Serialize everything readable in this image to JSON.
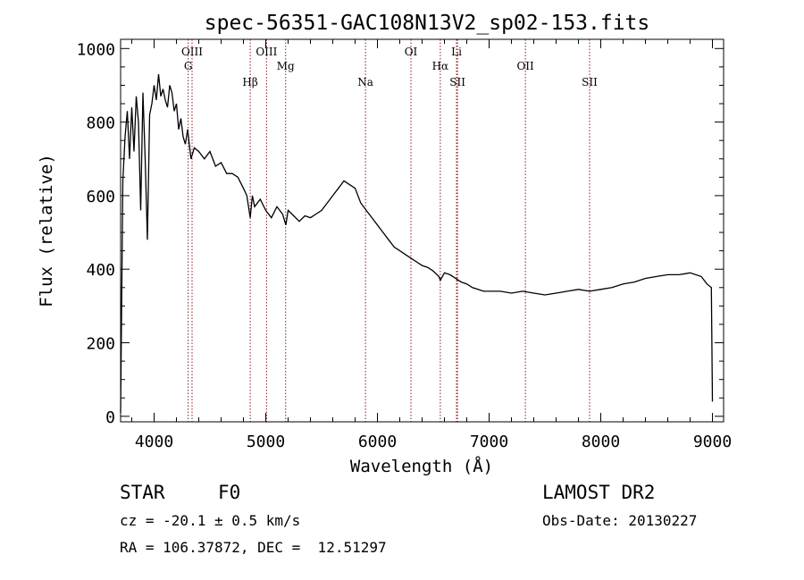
{
  "chart_data": {
    "type": "line",
    "title": "spec-56351-GAC108N13V2_sp02-153.fits",
    "xlabel": "Wavelength (Å)",
    "ylabel": "Flux (relative)",
    "xlim": [
      3700,
      9100
    ],
    "ylim": [
      -15,
      1025
    ],
    "x_ticks": [
      4000,
      5000,
      6000,
      7000,
      8000,
      9000
    ],
    "y_ticks": [
      0,
      200,
      400,
      600,
      800,
      1000
    ],
    "grid": false,
    "legend": "none",
    "series": [
      {
        "x": [
          3700,
          3720,
          3740,
          3760,
          3780,
          3800,
          3820,
          3840,
          3860,
          3880,
          3900,
          3920,
          3940,
          3960,
          3980,
          4000,
          4020,
          4040,
          4060,
          4080,
          4100,
          4120,
          4140,
          4160,
          4180,
          4200,
          4220,
          4240,
          4260,
          4280,
          4300,
          4330,
          4360,
          4400,
          4450,
          4500,
          4550,
          4600,
          4650,
          4700,
          4750,
          4800,
          4830,
          4861,
          4880,
          4900,
          4950,
          5000,
          5050,
          5100,
          5150,
          5180,
          5200,
          5250,
          5300,
          5350,
          5400,
          5450,
          5500,
          5550,
          5600,
          5650,
          5700,
          5750,
          5800,
          5850,
          5900,
          5950,
          6000,
          6050,
          6100,
          6150,
          6200,
          6250,
          6300,
          6350,
          6400,
          6450,
          6500,
          6550,
          6563,
          6600,
          6650,
          6700,
          6750,
          6800,
          6850,
          6900,
          6950,
          7000,
          7100,
          7200,
          7300,
          7400,
          7500,
          7600,
          7700,
          7800,
          7900,
          8000,
          8100,
          8200,
          8300,
          8400,
          8500,
          8600,
          8700,
          8800,
          8900,
          8950,
          8990,
          9000
        ],
        "y": [
          10,
          640,
          760,
          830,
          700,
          840,
          720,
          870,
          800,
          560,
          880,
          700,
          480,
          820,
          850,
          900,
          860,
          930,
          870,
          890,
          860,
          840,
          900,
          880,
          830,
          850,
          780,
          810,
          760,
          740,
          780,
          700,
          730,
          720,
          700,
          720,
          680,
          690,
          660,
          660,
          650,
          620,
          600,
          540,
          600,
          570,
          590,
          560,
          540,
          570,
          550,
          520,
          560,
          545,
          530,
          545,
          540,
          550,
          560,
          580,
          600,
          620,
          640,
          630,
          620,
          580,
          560,
          540,
          520,
          500,
          480,
          460,
          450,
          440,
          430,
          420,
          410,
          405,
          395,
          380,
          370,
          390,
          385,
          375,
          365,
          360,
          350,
          345,
          340,
          340,
          340,
          335,
          340,
          335,
          330,
          335,
          340,
          345,
          340,
          345,
          350,
          360,
          365,
          375,
          380,
          385,
          385,
          390,
          380,
          360,
          350,
          40
        ]
      }
    ],
    "lines": [
      {
        "label": "OIII",
        "x": 4340
      },
      {
        "label": "G",
        "x": 4305
      },
      {
        "label": "Hβ",
        "x": 4861
      },
      {
        "label": "OIII",
        "x": 5007
      },
      {
        "label": "Mg",
        "x": 5178
      },
      {
        "label": "Na",
        "x": 5893
      },
      {
        "label": "OI",
        "x": 6300
      },
      {
        "label": "Hα",
        "x": 6563
      },
      {
        "label": "SII",
        "x": 6717
      },
      {
        "label": "Li",
        "x": 6708
      },
      {
        "label": "OII",
        "x": 7325
      },
      {
        "label": "SII",
        "x": 7900
      }
    ]
  },
  "info": {
    "class": "STAR",
    "subclass": "F0",
    "cz": "cz = -20.1 ± 0.5 km/s",
    "radec": "RA = 106.37872, DEC =  12.51297",
    "survey": "LAMOST DR2",
    "obsdate": "Obs-Date: 20130227"
  }
}
